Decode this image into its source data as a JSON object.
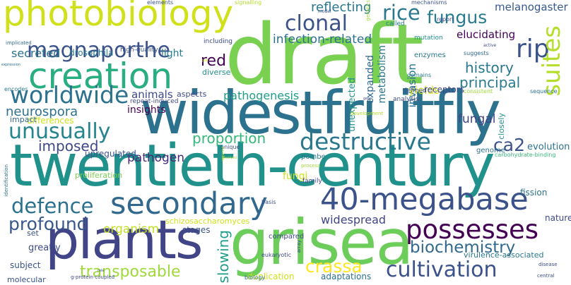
{
  "words": [
    {
      "text": "draft",
      "color": "#7ad151"
    },
    {
      "text": "widestfruitfly",
      "color": "#2c728e"
    },
    {
      "text": "twentieth-century",
      "color": "#21918c"
    },
    {
      "text": "grisea",
      "color": "#6ccd5a"
    },
    {
      "text": "plants",
      "color": "#414487"
    },
    {
      "text": "photobiology",
      "color": "#d0e11c"
    },
    {
      "text": "creation",
      "color": "#28ae80"
    },
    {
      "text": "secondary",
      "color": "#31688e"
    },
    {
      "text": "40-megabase",
      "color": "#3b528b"
    },
    {
      "text": "possesses",
      "color": "#440154"
    },
    {
      "text": "destructive",
      "color": "#2a788e"
    },
    {
      "text": "worldwide",
      "color": "#2c728e"
    },
    {
      "text": "magnaporthe",
      "color": "#3b528b"
    },
    {
      "text": "unusually",
      "color": "#25858e"
    },
    {
      "text": "defence",
      "color": "#2c728e"
    },
    {
      "text": "clonal",
      "color": "#3b528b"
    },
    {
      "text": "rice",
      "color": "#2a788e"
    },
    {
      "text": "rip",
      "color": "#3b528b"
    },
    {
      "text": "suites",
      "color": "#b5de2b"
    },
    {
      "text": "cultivation",
      "color": "#3b528b"
    },
    {
      "text": "crassa",
      "color": "#fde725"
    },
    {
      "text": "biochemistry",
      "color": "#31688e"
    },
    {
      "text": "profound",
      "color": "#38588c"
    },
    {
      "text": "fungus",
      "color": "#287c8e"
    },
    {
      "text": "transposable",
      "color": "#9fda3a"
    },
    {
      "text": "imposed",
      "color": "#3e4989"
    },
    {
      "text": "proportion",
      "color": "#35b779"
    },
    {
      "text": "neurospora",
      "color": "#2c728e"
    },
    {
      "text": "ca2",
      "color": "#3b528b"
    },
    {
      "text": "red",
      "color": "#440154"
    },
    {
      "text": "slowing",
      "color": "#1f9e89"
    },
    {
      "text": "history",
      "color": "#2a788e"
    },
    {
      "text": "principal",
      "color": "#287c8e"
    },
    {
      "text": "reflecting",
      "color": "#2a788e"
    },
    {
      "text": "secreted",
      "color": "#2c728e"
    },
    {
      "text": "infection-related",
      "color": "#2c728e"
    },
    {
      "text": "pathogen",
      "color": "#482878"
    },
    {
      "text": "organism",
      "color": "#c2df23"
    },
    {
      "text": "widespread",
      "color": "#414487"
    },
    {
      "text": "pathogenesis",
      "color": "#1f9e89"
    },
    {
      "text": "fungal",
      "color": "#414487"
    },
    {
      "text": "invasion",
      "color": "#2c728e"
    },
    {
      "text": "elucidating",
      "color": "#440154"
    },
    {
      "text": "melanogaster",
      "color": "#38588c"
    },
    {
      "text": "animals",
      "color": "#3e4989"
    },
    {
      "text": "expanded",
      "color": "#31688e"
    },
    {
      "text": "yields",
      "color": "#d0e11c"
    },
    {
      "text": "insights",
      "color": "#440154"
    },
    {
      "text": "fungi",
      "color": "#d0e11c"
    },
    {
      "text": "metabolism",
      "color": "#2a788e"
    },
    {
      "text": "unexpected",
      "color": "#21918c"
    },
    {
      "text": "light",
      "color": "#287c8e"
    },
    {
      "text": "drosophila",
      "color": "#2a788e"
    },
    {
      "text": "receptors",
      "color": "#414487"
    },
    {
      "text": "evolution",
      "color": "#2c728e"
    },
    {
      "text": "stages",
      "color": "#3b528b"
    },
    {
      "text": "differences",
      "color": "#d0e11c"
    },
    {
      "text": "subject",
      "color": "#3b528b"
    },
    {
      "text": "greatly",
      "color": "#3e4989"
    },
    {
      "text": "upregulated",
      "color": "#3b528b"
    },
    {
      "text": "adaptations",
      "color": "#2c728e"
    },
    {
      "text": "duplication",
      "color": "#d0e11c"
    },
    {
      "text": "schizosaccharomyces",
      "color": "#d0e11c"
    },
    {
      "text": "aspects",
      "color": "#3e4989"
    },
    {
      "text": "impact",
      "color": "#31688e"
    },
    {
      "text": "proliferation",
      "color": "#7ad151"
    },
    {
      "text": "fission",
      "color": "#2c728e"
    },
    {
      "text": "nature",
      "color": "#3e4989"
    },
    {
      "text": "virulence-associated",
      "color": "#2a788e"
    },
    {
      "text": "closely",
      "color": "#21918c"
    },
    {
      "text": "diverse",
      "color": "#21918c"
    },
    {
      "text": "set",
      "color": "#3b528b"
    },
    {
      "text": "molecular",
      "color": "#3b528b"
    },
    {
      "text": "pombe",
      "color": "#2a788e"
    },
    {
      "text": "compared",
      "color": "#3e4989"
    },
    {
      "text": "genome",
      "color": "#2c728e"
    },
    {
      "text": "enzymes",
      "color": "#2a788e"
    },
    {
      "text": "high-quality",
      "color": "#3b528b"
    },
    {
      "text": "family",
      "color": "#3e4989"
    },
    {
      "text": "mutation",
      "color": "#21918c"
    },
    {
      "text": "defined",
      "color": "#3b528b"
    },
    {
      "text": "repeat-induced",
      "color": "#3e4989"
    },
    {
      "text": "carbohydrate-binding",
      "color": "#35b779"
    },
    {
      "text": "including",
      "color": "#3e4989"
    },
    {
      "text": "called",
      "color": "#2a788e"
    },
    {
      "text": "analysis",
      "color": "#3e4989"
    },
    {
      "text": "suggests",
      "color": "#31688e"
    },
    {
      "text": "consistent",
      "color": "#9fda3a"
    },
    {
      "text": "elements",
      "color": "#3b528b"
    },
    {
      "text": "signalling",
      "color": "#b5de2b"
    },
    {
      "text": "mechanisms",
      "color": "#3b528b"
    },
    {
      "text": "report",
      "color": "#3e4989"
    },
    {
      "text": "domains",
      "color": "#287c8e"
    },
    {
      "text": "sequence",
      "color": "#2c728e"
    },
    {
      "text": "encodes",
      "color": "#2a788e"
    },
    {
      "text": "development",
      "color": "#b5de2b"
    },
    {
      "text": "eukaryotic",
      "color": "#3e4989"
    },
    {
      "text": "biology",
      "color": "#2c728e"
    },
    {
      "text": "basis",
      "color": "#3b528b"
    },
    {
      "text": "process",
      "color": "#9fda3a"
    },
    {
      "text": "central",
      "color": "#3e4989"
    },
    {
      "text": "disease",
      "color": "#3e4989"
    },
    {
      "text": "array",
      "color": "#3e4989"
    },
    {
      "text": "unique",
      "color": "#3b528b"
    },
    {
      "text": "implicated",
      "color": "#31688e"
    },
    {
      "text": "identification",
      "color": "#2c728e"
    },
    {
      "text": "g-protein-coupled",
      "color": "#3e4989"
    },
    {
      "text": "genetics",
      "color": "#9fda3a"
    },
    {
      "text": "model",
      "color": "#3b528b"
    },
    {
      "text": "active",
      "color": "#3e4989"
    },
    {
      "text": "expression",
      "color": "#2c728e"
    },
    {
      "text": "gene",
      "color": "#3e4989"
    },
    {
      "text": "required",
      "color": "#b5de2b"
    },
    {
      "text": "involved",
      "color": "#9fda3a"
    },
    {
      "text": "role",
      "color": "#3b528b"
    },
    {
      "text": "just",
      "color": "#d0e11c"
    }
  ]
}
